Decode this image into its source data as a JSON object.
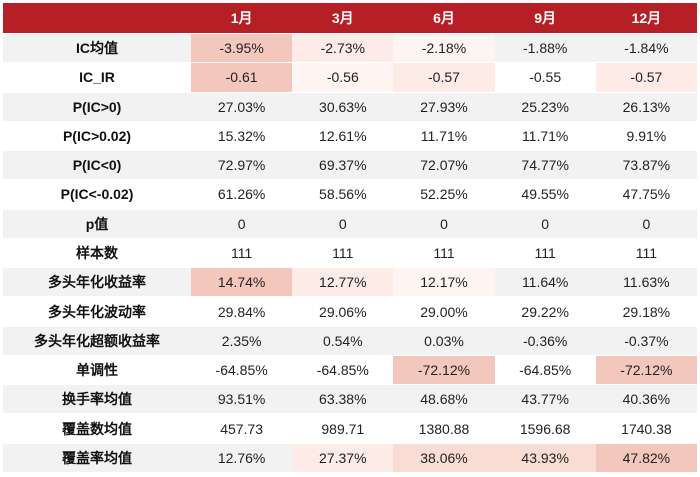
{
  "columns": [
    "1月",
    "3月",
    "6月",
    "9月",
    "12月"
  ],
  "rows": [
    {
      "label": "IC均值",
      "values": [
        "-3.95%",
        "-2.73%",
        "-2.18%",
        "-1.88%",
        "-1.84%"
      ],
      "shade": [
        "strong",
        "light",
        "faint",
        "",
        ""
      ]
    },
    {
      "label": "IC_IR",
      "values": [
        "-0.61",
        "-0.56",
        "-0.57",
        "-0.55",
        "-0.57"
      ],
      "shade": [
        "strong",
        "faint",
        "light",
        "",
        "light"
      ]
    },
    {
      "label": "P(IC>0)",
      "values": [
        "27.03%",
        "30.63%",
        "27.93%",
        "25.23%",
        "26.13%"
      ],
      "shade": [
        "",
        "",
        "",
        "",
        ""
      ]
    },
    {
      "label": "P(IC>0.02)",
      "values": [
        "15.32%",
        "12.61%",
        "11.71%",
        "11.71%",
        "9.91%"
      ],
      "shade": [
        "",
        "",
        "",
        "",
        ""
      ]
    },
    {
      "label": "P(IC<0)",
      "values": [
        "72.97%",
        "69.37%",
        "72.07%",
        "74.77%",
        "73.87%"
      ],
      "shade": [
        "",
        "",
        "",
        "",
        ""
      ]
    },
    {
      "label": "P(IC<-0.02)",
      "values": [
        "61.26%",
        "58.56%",
        "52.25%",
        "49.55%",
        "47.75%"
      ],
      "shade": [
        "",
        "",
        "",
        "",
        ""
      ]
    },
    {
      "label": "p值",
      "values": [
        "0",
        "0",
        "0",
        "0",
        "0"
      ],
      "shade": [
        "",
        "",
        "",
        "",
        ""
      ]
    },
    {
      "label": "样本数",
      "values": [
        "111",
        "111",
        "111",
        "111",
        "111"
      ],
      "shade": [
        "",
        "",
        "",
        "",
        ""
      ]
    },
    {
      "label": "多头年化收益率",
      "values": [
        "14.74%",
        "12.77%",
        "12.17%",
        "11.64%",
        "11.63%"
      ],
      "shade": [
        "strong",
        "light",
        "faint",
        "",
        ""
      ]
    },
    {
      "label": "多头年化波动率",
      "values": [
        "29.84%",
        "29.06%",
        "29.00%",
        "29.22%",
        "29.18%"
      ],
      "shade": [
        "",
        "",
        "",
        "",
        ""
      ]
    },
    {
      "label": "多头年化超额收益率",
      "values": [
        "2.35%",
        "0.54%",
        "0.03%",
        "-0.36%",
        "-0.37%"
      ],
      "shade": [
        "",
        "",
        "",
        "",
        ""
      ]
    },
    {
      "label": "单调性",
      "values": [
        "-64.85%",
        "-64.85%",
        "-72.12%",
        "-64.85%",
        "-72.12%"
      ],
      "shade": [
        "",
        "",
        "strong",
        "",
        "strong"
      ]
    },
    {
      "label": "换手率均值",
      "values": [
        "93.51%",
        "63.38%",
        "48.68%",
        "43.77%",
        "40.36%"
      ],
      "shade": [
        "",
        "",
        "",
        "",
        ""
      ]
    },
    {
      "label": "覆盖数均值",
      "values": [
        "457.73",
        "989.71",
        "1380.88",
        "1596.68",
        "1740.38"
      ],
      "shade": [
        "",
        "",
        "",
        "",
        ""
      ]
    },
    {
      "label": "覆盖率均值",
      "values": [
        "12.76%",
        "27.37%",
        "38.06%",
        "43.93%",
        "47.82%"
      ],
      "shade": [
        "",
        "light",
        "mid",
        "mid",
        "strong"
      ]
    }
  ],
  "colors": {
    "header_bg": "#b51f25",
    "header_text": "#ffffff",
    "row_alt_bg": "#f2f2f2",
    "heat_strong": "#f4c7bd",
    "heat_mid": "#f9dcd4",
    "heat_light": "#fcebe6",
    "heat_faint": "#fef4f1"
  }
}
